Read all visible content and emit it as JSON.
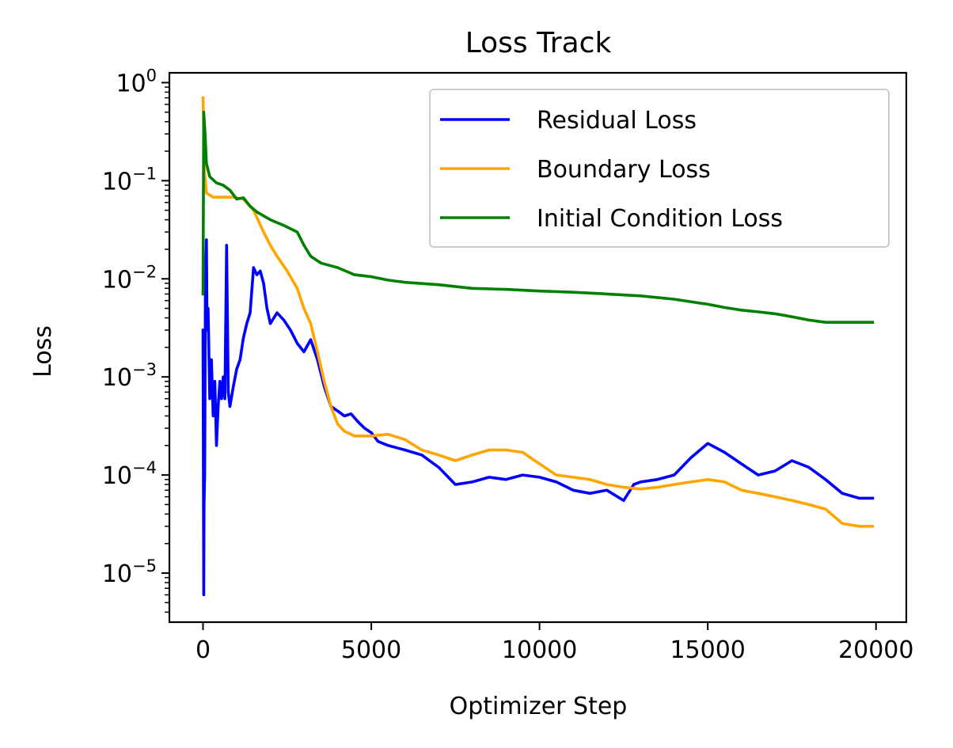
{
  "chart_data": {
    "type": "line",
    "title": "Loss Track",
    "xlabel": "Optimizer Step",
    "ylabel": "Loss",
    "yscale": "log",
    "xlim": [
      -1000,
      20900
    ],
    "ylim_log10": [
      -5.5,
      0.1
    ],
    "legend_position": "upper-right",
    "x_ticks": [
      {
        "value": 0,
        "label": "0"
      },
      {
        "value": 5000,
        "label": "5000"
      },
      {
        "value": 10000,
        "label": "10000"
      },
      {
        "value": 15000,
        "label": "15000"
      },
      {
        "value": 20000,
        "label": "20000"
      }
    ],
    "y_ticks": [
      {
        "exp": 0,
        "base": "10",
        "sup": "0"
      },
      {
        "exp": -1,
        "base": "10",
        "sup": "−1"
      },
      {
        "exp": -2,
        "base": "10",
        "sup": "−2"
      },
      {
        "exp": -3,
        "base": "10",
        "sup": "−3"
      },
      {
        "exp": -4,
        "base": "10",
        "sup": "−4"
      },
      {
        "exp": -5,
        "base": "10",
        "sup": "−5"
      }
    ],
    "series": [
      {
        "name": "Residual Loss",
        "color": "#0000ff",
        "points": [
          [
            0,
            0.003
          ],
          [
            10,
            0.0002
          ],
          [
            20,
            6e-06
          ],
          [
            30,
            5e-05
          ],
          [
            50,
            0.0001
          ],
          [
            70,
            0.008
          ],
          [
            100,
            0.025
          ],
          [
            120,
            0.003
          ],
          [
            150,
            0.005
          ],
          [
            200,
            0.0006
          ],
          [
            250,
            0.0015
          ],
          [
            300,
            0.0004
          ],
          [
            350,
            0.0009
          ],
          [
            400,
            0.0002
          ],
          [
            450,
            0.0005
          ],
          [
            500,
            0.0009
          ],
          [
            550,
            0.0006
          ],
          [
            600,
            0.001
          ],
          [
            650,
            0.0006
          ],
          [
            700,
            0.022
          ],
          [
            750,
            0.0007
          ],
          [
            800,
            0.0005
          ],
          [
            900,
            0.0008
          ],
          [
            1000,
            0.0012
          ],
          [
            1100,
            0.0015
          ],
          [
            1200,
            0.0025
          ],
          [
            1300,
            0.0035
          ],
          [
            1400,
            0.0045
          ],
          [
            1500,
            0.013
          ],
          [
            1600,
            0.011
          ],
          [
            1700,
            0.012
          ],
          [
            1800,
            0.009
          ],
          [
            1900,
            0.005
          ],
          [
            2000,
            0.0035
          ],
          [
            2200,
            0.0045
          ],
          [
            2400,
            0.0038
          ],
          [
            2600,
            0.003
          ],
          [
            2800,
            0.0022
          ],
          [
            3000,
            0.0018
          ],
          [
            3200,
            0.0024
          ],
          [
            3400,
            0.0015
          ],
          [
            3600,
            0.0008
          ],
          [
            3800,
            0.0005
          ],
          [
            4000,
            0.00045
          ],
          [
            4200,
            0.0004
          ],
          [
            4400,
            0.00042
          ],
          [
            4600,
            0.00035
          ],
          [
            4800,
            0.0003
          ],
          [
            5000,
            0.00027
          ],
          [
            5200,
            0.00022
          ],
          [
            5500,
            0.0002
          ],
          [
            6000,
            0.00018
          ],
          [
            6500,
            0.00016
          ],
          [
            7000,
            0.00012
          ],
          [
            7500,
            8e-05
          ],
          [
            8000,
            8.5e-05
          ],
          [
            8500,
            9.5e-05
          ],
          [
            9000,
            9e-05
          ],
          [
            9500,
            0.0001
          ],
          [
            10000,
            9.5e-05
          ],
          [
            10500,
            8.5e-05
          ],
          [
            11000,
            7e-05
          ],
          [
            11500,
            6.5e-05
          ],
          [
            12000,
            7e-05
          ],
          [
            12500,
            5.5e-05
          ],
          [
            12800,
            8e-05
          ],
          [
            13000,
            8.5e-05
          ],
          [
            13500,
            9e-05
          ],
          [
            14000,
            0.0001
          ],
          [
            14500,
            0.00015
          ],
          [
            15000,
            0.00021
          ],
          [
            15500,
            0.00017
          ],
          [
            16000,
            0.00013
          ],
          [
            16500,
            0.0001
          ],
          [
            17000,
            0.00011
          ],
          [
            17500,
            0.00014
          ],
          [
            18000,
            0.00012
          ],
          [
            18500,
            9e-05
          ],
          [
            19000,
            6.5e-05
          ],
          [
            19500,
            5.8e-05
          ],
          [
            19900,
            5.8e-05
          ]
        ]
      },
      {
        "name": "Boundary Loss",
        "color": "#ffa500",
        "points": [
          [
            0,
            0.7
          ],
          [
            50,
            0.12
          ],
          [
            100,
            0.075
          ],
          [
            300,
            0.068
          ],
          [
            600,
            0.068
          ],
          [
            900,
            0.068
          ],
          [
            1200,
            0.065
          ],
          [
            1500,
            0.05
          ],
          [
            1800,
            0.03
          ],
          [
            2000,
            0.022
          ],
          [
            2200,
            0.017
          ],
          [
            2500,
            0.012
          ],
          [
            2800,
            0.008
          ],
          [
            3000,
            0.005
          ],
          [
            3200,
            0.0035
          ],
          [
            3400,
            0.0018
          ],
          [
            3600,
            0.0009
          ],
          [
            3800,
            0.0005
          ],
          [
            4000,
            0.00033
          ],
          [
            4200,
            0.00028
          ],
          [
            4500,
            0.00025
          ],
          [
            5000,
            0.00025
          ],
          [
            5500,
            0.00026
          ],
          [
            6000,
            0.00023
          ],
          [
            6500,
            0.00018
          ],
          [
            7000,
            0.00016
          ],
          [
            7500,
            0.00014
          ],
          [
            8000,
            0.00016
          ],
          [
            8500,
            0.00018
          ],
          [
            9000,
            0.00018
          ],
          [
            9500,
            0.00017
          ],
          [
            10000,
            0.00013
          ],
          [
            10500,
            0.0001
          ],
          [
            11000,
            9.5e-05
          ],
          [
            11500,
            9e-05
          ],
          [
            12000,
            8e-05
          ],
          [
            12500,
            7.5e-05
          ],
          [
            13000,
            7.2e-05
          ],
          [
            13500,
            7.5e-05
          ],
          [
            14000,
            8e-05
          ],
          [
            14500,
            8.5e-05
          ],
          [
            15000,
            9e-05
          ],
          [
            15500,
            8.5e-05
          ],
          [
            16000,
            7e-05
          ],
          [
            16500,
            6.5e-05
          ],
          [
            17000,
            6e-05
          ],
          [
            17500,
            5.5e-05
          ],
          [
            18000,
            5e-05
          ],
          [
            18500,
            4.5e-05
          ],
          [
            19000,
            3.2e-05
          ],
          [
            19500,
            3e-05
          ],
          [
            19900,
            3e-05
          ]
        ]
      },
      {
        "name": "Initial Condition Loss",
        "color": "#008000",
        "points": [
          [
            0,
            0.007
          ],
          [
            20,
            0.5
          ],
          [
            60,
            0.3
          ],
          [
            100,
            0.15
          ],
          [
            200,
            0.11
          ],
          [
            400,
            0.095
          ],
          [
            600,
            0.09
          ],
          [
            800,
            0.08
          ],
          [
            1000,
            0.065
          ],
          [
            1200,
            0.067
          ],
          [
            1400,
            0.055
          ],
          [
            1600,
            0.048
          ],
          [
            2000,
            0.04
          ],
          [
            2400,
            0.035
          ],
          [
            2800,
            0.03
          ],
          [
            3000,
            0.022
          ],
          [
            3200,
            0.017
          ],
          [
            3500,
            0.0145
          ],
          [
            4000,
            0.013
          ],
          [
            4500,
            0.011
          ],
          [
            5000,
            0.0105
          ],
          [
            5500,
            0.0097
          ],
          [
            6000,
            0.0092
          ],
          [
            7000,
            0.0087
          ],
          [
            8000,
            0.008
          ],
          [
            9000,
            0.0078
          ],
          [
            10000,
            0.0075
          ],
          [
            11000,
            0.0073
          ],
          [
            12000,
            0.007
          ],
          [
            13000,
            0.0067
          ],
          [
            14000,
            0.0062
          ],
          [
            15000,
            0.0055
          ],
          [
            15500,
            0.0051
          ],
          [
            16000,
            0.0048
          ],
          [
            16500,
            0.0046
          ],
          [
            17000,
            0.0044
          ],
          [
            17500,
            0.0041
          ],
          [
            18000,
            0.0038
          ],
          [
            18500,
            0.0036
          ],
          [
            19000,
            0.0036
          ],
          [
            19500,
            0.0036
          ],
          [
            19900,
            0.0036
          ]
        ]
      }
    ]
  }
}
